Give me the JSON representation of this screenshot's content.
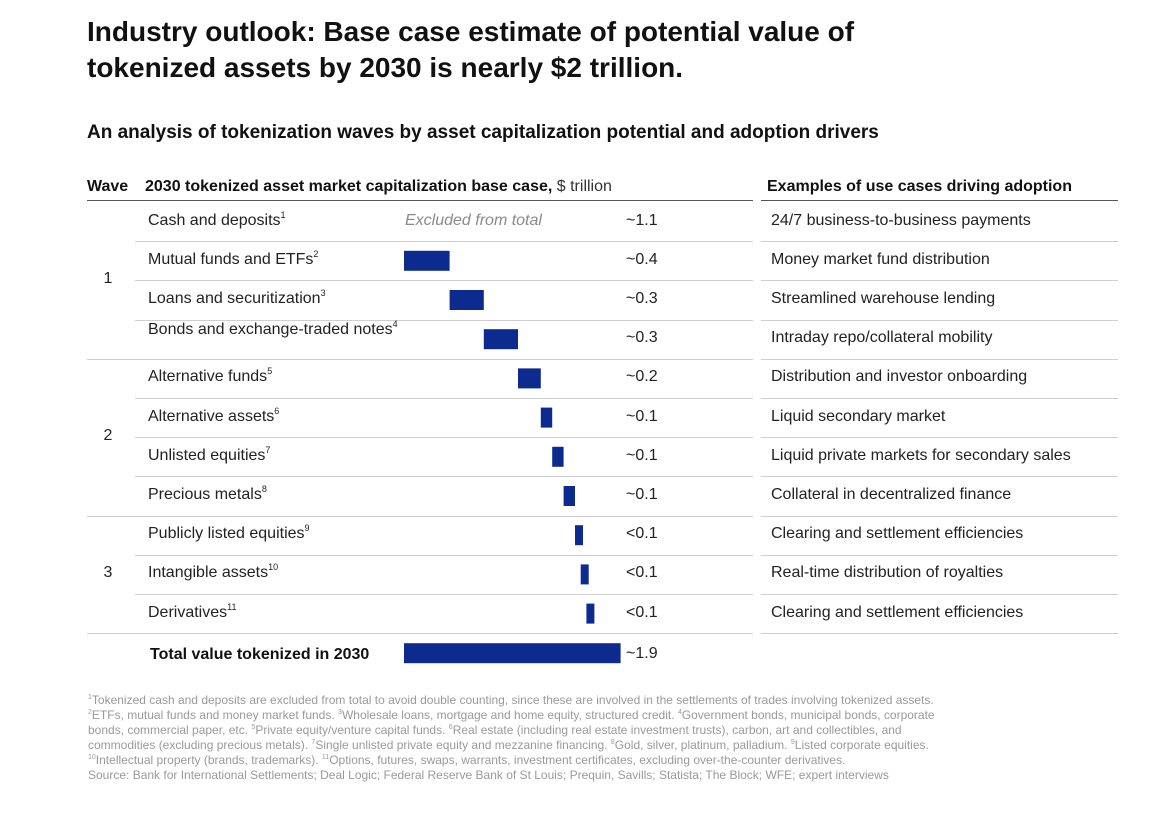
{
  "title_lines": [
    "Industry outlook: Base case estimate of potential value of",
    "tokenized assets by 2030 is nearly $2 trillion."
  ],
  "subtitle": "An analysis of tokenization waves by asset capitalization potential and adoption drivers",
  "headers": {
    "wave": "Wave",
    "market_cap": "2030 tokenized asset market capitalization base case,",
    "market_cap_unit": "$ trillion",
    "examples": "Examples of use cases driving adoption"
  },
  "colors": {
    "bar": "#0d2b8f",
    "rule": "#cfcfcf",
    "rule_dark": "#555555"
  },
  "excluded_label": "Excluded from total",
  "chart_data": {
    "type": "bar",
    "orientation": "horizontal",
    "style": "waterfall",
    "unit": "$ trillion",
    "waves": [
      "1",
      "2",
      "3"
    ],
    "rows": [
      {
        "wave": "1",
        "label": "Cash and deposits",
        "note": "1",
        "value": 1.1,
        "display": "~1.1",
        "excluded": true,
        "example": "24/7 business-to-business payments"
      },
      {
        "wave": "1",
        "label": "Mutual funds and ETFs",
        "note": "2",
        "value": 0.4,
        "display": "~0.4",
        "example": "Money market fund distribution"
      },
      {
        "wave": "1",
        "label": "Loans and securitization",
        "note": "3",
        "value": 0.3,
        "display": "~0.3",
        "example": "Streamlined warehouse lending"
      },
      {
        "wave": "1",
        "label": "Bonds and exchange-traded notes",
        "note": "4",
        "value": 0.3,
        "display": "~0.3",
        "example": "Intraday repo/collateral mobility"
      },
      {
        "wave": "2",
        "label": "Alternative funds",
        "note": "5",
        "value": 0.2,
        "display": "~0.2",
        "example": "Distribution and investor onboarding"
      },
      {
        "wave": "2",
        "label": "Alternative assets",
        "note": "6",
        "value": 0.1,
        "display": "~0.1",
        "example": "Liquid secondary market"
      },
      {
        "wave": "2",
        "label": "Unlisted equities",
        "note": "7",
        "value": 0.1,
        "display": "~0.1",
        "example": "Liquid private markets for secondary sales"
      },
      {
        "wave": "2",
        "label": "Precious metals",
        "note": "8",
        "value": 0.1,
        "display": "~0.1",
        "example": "Collateral in decentralized finance"
      },
      {
        "wave": "3",
        "label": "Publicly listed equities",
        "note": "9",
        "value": 0.05,
        "display": "<0.1",
        "example": "Clearing and settlement efficiencies"
      },
      {
        "wave": "3",
        "label": "Intangible assets",
        "note": "10",
        "value": 0.05,
        "display": "<0.1",
        "example": "Real-time distribution of royalties"
      },
      {
        "wave": "3",
        "label": "Derivatives",
        "note": "11",
        "value": 0.05,
        "display": "<0.1",
        "example": "Clearing and settlement efficiencies"
      }
    ],
    "total": {
      "label": "Total value tokenized in 2030",
      "value": 1.9,
      "display": "~1.9"
    }
  },
  "footnotes": [
    [
      {
        "sup": "1"
      },
      {
        "t": "Tokenized cash and deposits are excluded from total to avoid double counting, since these are involved in the settlements of trades involving tokenized assets."
      }
    ],
    [
      {
        "sup": "2"
      },
      {
        "t": "ETFs, mutual funds and money market funds. "
      },
      {
        "sup": "3"
      },
      {
        "t": "Wholesale loans, mortgage and home equity, structured credit. "
      },
      {
        "sup": "4"
      },
      {
        "t": "Government bonds, municipal bonds, corporate"
      }
    ],
    [
      {
        "t": "bonds, commercial paper, etc. "
      },
      {
        "sup": "5"
      },
      {
        "t": "Private equity/venture capital funds. "
      },
      {
        "sup": "6"
      },
      {
        "t": "Real estate (including real estate investment trusts), carbon, art and collectibles, and"
      }
    ],
    [
      {
        "t": "commodities (excluding precious metals). "
      },
      {
        "sup": "7"
      },
      {
        "t": "Single unlisted private equity and mezzanine financing. "
      },
      {
        "sup": "8"
      },
      {
        "t": "Gold, silver, platinum, palladium. "
      },
      {
        "sup": "9"
      },
      {
        "t": "Listed corporate equities."
      }
    ],
    [
      {
        "sup": "10"
      },
      {
        "t": "Intellectual property (brands, trademarks). "
      },
      {
        "sup": "11"
      },
      {
        "t": "Options, futures, swaps, warrants, investment certificates, excluding over-the-counter derivatives."
      }
    ],
    [
      {
        "t": "Source: Bank for International Settlements; Deal Logic; Federal Reserve Bank of St Louis; Prequin, Savills; Statista; The Block; WFE; expert interviews"
      }
    ]
  ]
}
